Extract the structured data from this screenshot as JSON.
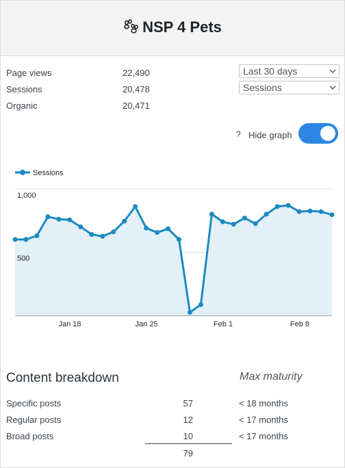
{
  "header": {
    "title": "NSP 4 Pets",
    "icon": "paw-icon"
  },
  "stats": [
    {
      "label": "Page views",
      "value": "22,490"
    },
    {
      "label": "Sessions",
      "value": "20,478"
    },
    {
      "label": "Organic",
      "value": "20,471"
    }
  ],
  "controls": {
    "range_value": "Last 30 days",
    "metric_value": "Sessions",
    "help_glyph": "?",
    "hide_graph_label": "Hide graph",
    "hide_graph_on": true
  },
  "chart_data": {
    "type": "area",
    "series": [
      {
        "name": "Sessions",
        "color": "#1a8ac0",
        "fill": "#e3f0f7",
        "values": [
          600,
          600,
          630,
          780,
          760,
          755,
          700,
          640,
          625,
          660,
          745,
          860,
          690,
          655,
          685,
          600,
          25,
          85,
          800,
          740,
          720,
          770,
          725,
          800,
          860,
          870,
          820,
          825,
          820,
          795
        ]
      }
    ],
    "ylim": [
      0,
      1000
    ],
    "y_ticks": [
      "500",
      "1,000"
    ],
    "x_ticks": [
      "Jan 18",
      "Jan 25",
      "Feb 1",
      "Feb 8"
    ],
    "grid": true,
    "legend": "top-left"
  },
  "content_breakdown": {
    "title": "Content breakdown",
    "max_maturity_label": "Max maturity",
    "rows": [
      {
        "label": "Specific posts",
        "count": "57",
        "maturity": "< 18 months"
      },
      {
        "label": "Regular posts",
        "count": "12",
        "maturity": "< 17 months"
      },
      {
        "label": "Broad posts",
        "count": "10",
        "maturity": "< 17 months"
      }
    ],
    "total": "79"
  }
}
